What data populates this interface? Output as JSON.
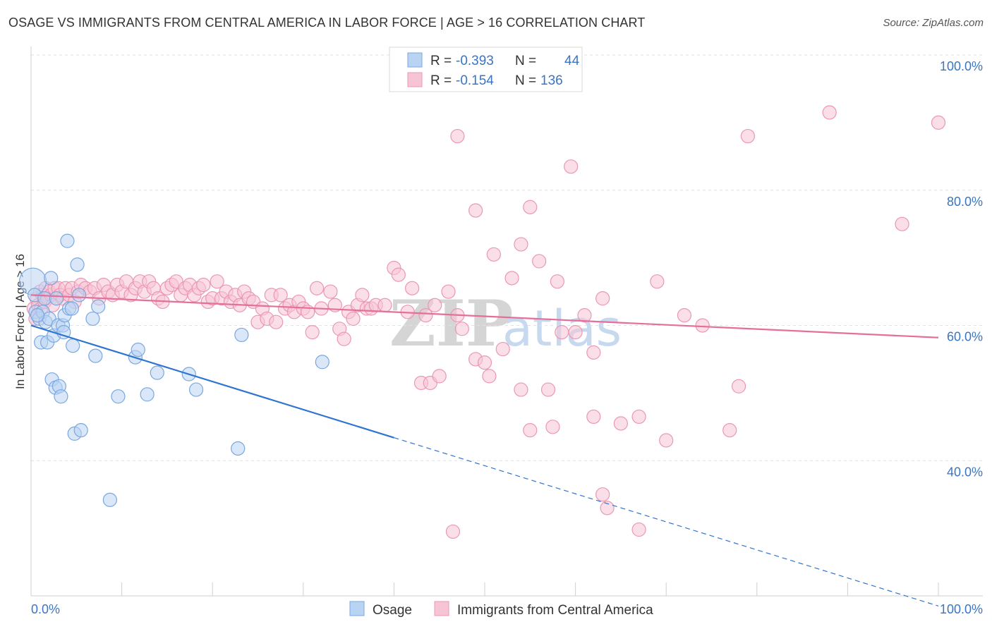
{
  "title": "OSAGE VS IMMIGRANTS FROM CENTRAL AMERICA IN LABOR FORCE | AGE > 16 CORRELATION CHART",
  "source": "Source: ZipAtlas.com",
  "watermark": {
    "zip": "ZIP",
    "atlas": "atlas"
  },
  "colors": {
    "osage_fill": "#b9d3f3",
    "osage_stroke": "#7aa7df",
    "osage_line": "#2f74d0",
    "central_fill": "#f7c4d5",
    "central_stroke": "#eb97b3",
    "central_line": "#e46f9a",
    "tick_blue": "#3a75c4"
  },
  "legend_top": {
    "rows": [
      {
        "r_label": "R =",
        "r_value": "-0.393",
        "n_label": "N =",
        "n_value": "44"
      },
      {
        "r_label": "R =",
        "r_value": "-0.154",
        "n_label": "N =",
        "n_value": "136"
      }
    ]
  },
  "legend_bottom": [
    "Osage",
    "Immigrants from Central America"
  ],
  "chart_data": {
    "type": "scatter",
    "title": "OSAGE VS IMMIGRANTS FROM CENTRAL AMERICA IN LABOR FORCE | AGE > 16 CORRELATION CHART",
    "xlabel": "",
    "ylabel": "In Labor Force | Age > 16",
    "xlim": [
      0,
      100
    ],
    "ylim": [
      20,
      100
    ],
    "x_tick_labels": [
      "0.0%",
      "100.0%"
    ],
    "y_ticks": [
      40,
      60,
      80,
      100
    ],
    "y_tick_labels": [
      "40.0%",
      "60.0%",
      "80.0%",
      "100.0%"
    ],
    "grid": true,
    "legend_placement": "top-center",
    "series": [
      {
        "name": "Osage",
        "R": -0.393,
        "N": 44,
        "trend": {
          "x0": 0,
          "y0": 60.0,
          "x1": 100,
          "y1": 18.5,
          "solid_until": 40
        },
        "points": [
          [
            0.2,
            66.5,
            "l"
          ],
          [
            0.4,
            64.5
          ],
          [
            0.5,
            62.0
          ],
          [
            0.9,
            61.0
          ],
          [
            1.1,
            57.5
          ],
          [
            1.3,
            62.0
          ],
          [
            1.6,
            60.5
          ],
          [
            1.8,
            57.5
          ],
          [
            2.0,
            61.0
          ],
          [
            2.2,
            67.0
          ],
          [
            2.3,
            52.0
          ],
          [
            2.5,
            58.5
          ],
          [
            2.7,
            50.8
          ],
          [
            3.0,
            60.0
          ],
          [
            3.1,
            51.0
          ],
          [
            3.3,
            49.5
          ],
          [
            3.5,
            60.0
          ],
          [
            3.6,
            59.0
          ],
          [
            3.7,
            61.5
          ],
          [
            4.0,
            72.5
          ],
          [
            4.2,
            62.5
          ],
          [
            4.5,
            62.5
          ],
          [
            4.6,
            57.0
          ],
          [
            4.8,
            44.0
          ],
          [
            5.1,
            69.0
          ],
          [
            5.3,
            64.5
          ],
          [
            5.5,
            44.5
          ],
          [
            6.8,
            61.0
          ],
          [
            7.1,
            55.5
          ],
          [
            7.4,
            62.8
          ],
          [
            8.7,
            34.2
          ],
          [
            9.6,
            49.5
          ],
          [
            11.5,
            55.3
          ],
          [
            11.8,
            56.4
          ],
          [
            12.8,
            49.8
          ],
          [
            13.9,
            53.0
          ],
          [
            17.4,
            52.8
          ],
          [
            18.2,
            50.5
          ],
          [
            22.8,
            41.8
          ],
          [
            23.2,
            58.6
          ],
          [
            32.1,
            54.6
          ],
          [
            0.7,
            61.5
          ],
          [
            1.5,
            64.0
          ],
          [
            2.8,
            64.0
          ]
        ]
      },
      {
        "name": "Immigrants from Central America",
        "R": -0.154,
        "N": 136,
        "trend": {
          "x0": 0,
          "y0": 64.5,
          "x1": 100,
          "y1": 58.2
        },
        "points": [
          [
            0.3,
            62.5
          ],
          [
            0.5,
            61.0
          ],
          [
            0.6,
            64.0
          ],
          [
            0.8,
            63.0
          ],
          [
            1.0,
            65.0
          ],
          [
            1.1,
            62.5
          ],
          [
            1.3,
            64.5
          ],
          [
            1.5,
            63.5
          ],
          [
            1.6,
            65.5
          ],
          [
            1.8,
            64.0
          ],
          [
            2.0,
            65.0
          ],
          [
            2.2,
            64.5
          ],
          [
            2.4,
            63.0
          ],
          [
            2.6,
            65.5
          ],
          [
            2.8,
            64.0
          ],
          [
            3.0,
            65.5
          ],
          [
            3.2,
            64.5
          ],
          [
            3.5,
            64.0
          ],
          [
            3.8,
            65.5
          ],
          [
            4.2,
            64.5
          ],
          [
            4.5,
            65.5
          ],
          [
            4.8,
            63.5
          ],
          [
            5.2,
            65.0
          ],
          [
            5.5,
            66.0
          ],
          [
            6.0,
            65.5
          ],
          [
            6.5,
            65.0
          ],
          [
            7.0,
            65.5
          ],
          [
            7.5,
            64.0
          ],
          [
            8.0,
            66.0
          ],
          [
            8.5,
            65.0
          ],
          [
            9.0,
            64.5
          ],
          [
            9.5,
            66.0
          ],
          [
            10.0,
            65.0
          ],
          [
            10.5,
            66.5
          ],
          [
            11.0,
            64.5
          ],
          [
            11.5,
            65.5
          ],
          [
            12.0,
            66.5
          ],
          [
            12.5,
            65.0
          ],
          [
            13.0,
            66.5
          ],
          [
            13.5,
            65.5
          ],
          [
            14.0,
            64.0
          ],
          [
            14.5,
            63.5
          ],
          [
            15.0,
            65.5
          ],
          [
            15.5,
            66.0
          ],
          [
            16.0,
            66.5
          ],
          [
            16.5,
            64.5
          ],
          [
            17.0,
            65.5
          ],
          [
            17.5,
            66.0
          ],
          [
            18.0,
            64.5
          ],
          [
            18.5,
            65.5
          ],
          [
            19.0,
            66.0
          ],
          [
            19.5,
            63.5
          ],
          [
            20.0,
            64.0
          ],
          [
            20.5,
            66.5
          ],
          [
            21.0,
            64.0
          ],
          [
            21.5,
            65.0
          ],
          [
            22.0,
            63.5
          ],
          [
            22.5,
            64.5
          ],
          [
            23.0,
            63.0
          ],
          [
            23.5,
            65.0
          ],
          [
            24.0,
            64.0
          ],
          [
            24.5,
            63.5
          ],
          [
            25.0,
            60.5
          ],
          [
            25.5,
            62.5
          ],
          [
            26.0,
            61.0
          ],
          [
            26.5,
            64.5
          ],
          [
            27.0,
            60.5
          ],
          [
            27.5,
            64.5
          ],
          [
            28.0,
            62.5
          ],
          [
            28.5,
            63.0
          ],
          [
            29.0,
            62.0
          ],
          [
            29.5,
            63.5
          ],
          [
            30.0,
            62.5
          ],
          [
            30.5,
            62.0
          ],
          [
            31.0,
            59.0
          ],
          [
            31.5,
            65.5
          ],
          [
            32.0,
            62.5
          ],
          [
            33.0,
            65.0
          ],
          [
            33.5,
            63.0
          ],
          [
            34.0,
            59.5
          ],
          [
            34.5,
            58.0
          ],
          [
            35.0,
            62.0
          ],
          [
            35.5,
            61.0
          ],
          [
            36.0,
            63.0
          ],
          [
            36.5,
            64.5
          ],
          [
            37.0,
            62.5
          ],
          [
            37.5,
            62.5
          ],
          [
            38.0,
            63.0
          ],
          [
            39.0,
            63.0
          ],
          [
            40.0,
            68.5
          ],
          [
            40.5,
            67.5
          ],
          [
            41.5,
            62.0
          ],
          [
            42.0,
            65.5
          ],
          [
            43.0,
            51.5
          ],
          [
            43.5,
            61.5
          ],
          [
            44.0,
            51.5
          ],
          [
            44.5,
            63.0
          ],
          [
            45.0,
            52.5
          ],
          [
            46.0,
            65.0
          ],
          [
            46.5,
            29.5
          ],
          [
            47.0,
            61.5
          ],
          [
            47.0,
            88.0
          ],
          [
            47.5,
            59.5
          ],
          [
            49.0,
            77.0
          ],
          [
            49.0,
            55.0
          ],
          [
            50.0,
            54.5
          ],
          [
            50.5,
            52.5
          ],
          [
            51.0,
            70.5
          ],
          [
            52.0,
            56.5
          ],
          [
            53.0,
            67.0
          ],
          [
            54.0,
            50.5
          ],
          [
            54.0,
            72.0
          ],
          [
            55.0,
            44.5
          ],
          [
            55.0,
            77.5
          ],
          [
            56.0,
            69.5
          ],
          [
            57.0,
            50.5
          ],
          [
            57.5,
            45.0
          ],
          [
            58.0,
            66.5
          ],
          [
            58.5,
            59.0
          ],
          [
            59.5,
            83.5
          ],
          [
            60.0,
            59.0
          ],
          [
            61.0,
            61.5
          ],
          [
            62.0,
            46.5
          ],
          [
            62.0,
            56.0
          ],
          [
            63.0,
            64.0
          ],
          [
            63.0,
            35.0
          ],
          [
            63.5,
            33.0
          ],
          [
            65.0,
            45.5
          ],
          [
            67.0,
            29.8
          ],
          [
            67.0,
            46.5
          ],
          [
            69.0,
            66.5
          ],
          [
            70.0,
            43.0
          ],
          [
            72.0,
            61.5
          ],
          [
            74.0,
            60.0
          ],
          [
            77.0,
            44.5
          ],
          [
            78.0,
            51.0
          ],
          [
            79.0,
            88.0
          ],
          [
            88.0,
            91.5
          ],
          [
            96.0,
            75.0
          ],
          [
            100.0,
            90.0
          ]
        ]
      }
    ]
  }
}
